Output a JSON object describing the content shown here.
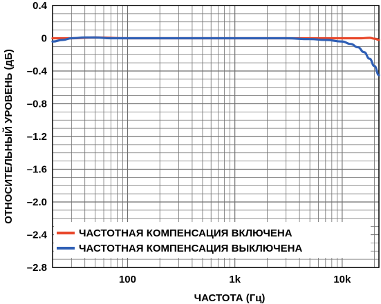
{
  "chart_data": {
    "type": "line",
    "xlabel": "ЧАСТОТА (Гц)",
    "ylabel": "ОТНОСИТЕЛЬНЫЙ УРОВЕНЬ (дБ)",
    "x_scale": "log",
    "xlim": [
      20,
      22000
    ],
    "ylim": [
      -2.8,
      0.4
    ],
    "x_ticks": [
      {
        "value": 100,
        "label": "100"
      },
      {
        "value": 1000,
        "label": "1k"
      },
      {
        "value": 10000,
        "label": "10k"
      }
    ],
    "y_ticks": [
      {
        "value": 0.4,
        "label": "0.4"
      },
      {
        "value": 0,
        "label": "0"
      },
      {
        "value": -0.4,
        "label": "–0.4"
      },
      {
        "value": -0.8,
        "label": "–0.8"
      },
      {
        "value": -1.2,
        "label": "–1.2"
      },
      {
        "value": -1.6,
        "label": "–1.6"
      },
      {
        "value": -2.0,
        "label": "–2.0"
      },
      {
        "value": -2.4,
        "label": "–2.4"
      },
      {
        "value": -2.8,
        "label": "–2.8"
      }
    ],
    "grid": true,
    "legend_position": "bottom",
    "series": [
      {
        "name": "ЧАСТОТНАЯ КОМПЕНСАЦИЯ ВКЛЮЧЕНА",
        "color": "#e8472a",
        "x": [
          20,
          30,
          50,
          100,
          300,
          1000,
          3000,
          10000,
          15000,
          18000,
          20000,
          22000
        ],
        "y": [
          0.0,
          0.0,
          0.01,
          0.0,
          0.0,
          0.0,
          0.0,
          0.0,
          0.0,
          0.005,
          -0.005,
          -0.02
        ]
      },
      {
        "name": "ЧАСТОТНАЯ КОМПЕНСАЦИЯ ВЫКЛЮЧЕНА",
        "color": "#2f5fb5",
        "x": [
          20,
          25,
          30,
          40,
          50,
          70,
          100,
          300,
          1000,
          3000,
          5000,
          7000,
          10000,
          12000,
          14000,
          16000,
          18000,
          20000,
          22000
        ],
        "y": [
          -0.04,
          -0.02,
          0.0,
          0.01,
          0.01,
          0.0,
          0.0,
          0.0,
          0.0,
          0.0,
          -0.01,
          -0.02,
          -0.04,
          -0.07,
          -0.11,
          -0.17,
          -0.25,
          -0.34,
          -0.45
        ]
      }
    ]
  }
}
